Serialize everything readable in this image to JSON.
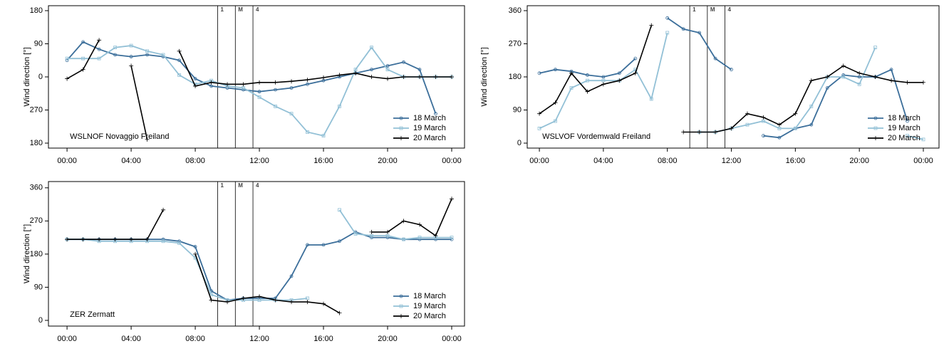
{
  "chart_data": [
    {
      "type": "line",
      "title": "WSLNOF Novaggio Freiland",
      "y_label": "Wind direction [°]",
      "legend": "bottom-right",
      "x": [
        0,
        1,
        2,
        3,
        4,
        5,
        6,
        7,
        8,
        9,
        10,
        11,
        12,
        13,
        14,
        15,
        16,
        17,
        18,
        19,
        20,
        21,
        22,
        23,
        24
      ],
      "xlim": [
        -1.16,
        24.8
      ],
      "xticks": [
        {
          "value": 0,
          "label": "00:00"
        },
        {
          "value": 4,
          "label": "04:00"
        },
        {
          "value": 8,
          "label": "08:00"
        },
        {
          "value": 12,
          "label": "12:00"
        },
        {
          "value": 16,
          "label": "16:00"
        },
        {
          "value": 20,
          "label": "20:00"
        },
        {
          "value": 24,
          "label": "00:00"
        }
      ],
      "ylim": [
        -193.5,
        193.5
      ],
      "yticks": [
        {
          "value": -180,
          "label": "180"
        },
        {
          "value": -90,
          "label": "270"
        },
        0,
        90,
        180
      ],
      "events": [
        {
          "x": 9.4,
          "label": "1"
        },
        {
          "x": 10.5,
          "label": "M"
        },
        {
          "x": 11.6,
          "label": "4"
        }
      ],
      "series": [
        {
          "name": "18 March",
          "color": "#3b6e9a",
          "marker": "circle",
          "values": [
            45,
            95,
            75,
            60,
            55,
            60,
            55,
            45,
            -5,
            -25,
            -30,
            -35,
            -40,
            -35,
            -30,
            -20,
            -10,
            0,
            10,
            20,
            30,
            40,
            20,
            -100,
            null
          ]
        },
        {
          "name": "19 March",
          "color": "#92c0d6",
          "marker": "square",
          "values": [
            50,
            50,
            50,
            80,
            85,
            70,
            60,
            5,
            -20,
            -10,
            -25,
            -30,
            -55,
            -80,
            -100,
            -150,
            -160,
            -80,
            20,
            80,
            20,
            0,
            0,
            0,
            0
          ]
        },
        {
          "name": "20 March",
          "color": "#000000",
          "marker": "plus",
          "values": [
            -5,
            20,
            100,
            null,
            30,
            -170,
            null,
            70,
            -25,
            -15,
            -20,
            -20,
            -15,
            -15,
            -12,
            -8,
            -2,
            5,
            10,
            0,
            -5,
            0,
            0,
            0,
            0
          ]
        }
      ]
    },
    {
      "type": "line",
      "title": "WSLVOF Vordemwald Freiland",
      "y_label": "Wind direction [°]",
      "legend": "bottom-right",
      "x": [
        0,
        1,
        2,
        3,
        4,
        5,
        6,
        7,
        8,
        9,
        10,
        11,
        12,
        13,
        14,
        15,
        16,
        17,
        18,
        19,
        20,
        21,
        22,
        23,
        24
      ],
      "xlim": [
        -0.76,
        24.98
      ],
      "xticks": [
        {
          "value": 0,
          "label": "00:00"
        },
        {
          "value": 4,
          "label": "04:00"
        },
        {
          "value": 8,
          "label": "08:00"
        },
        {
          "value": 12,
          "label": "12:00"
        },
        {
          "value": 16,
          "label": "16:00"
        },
        {
          "value": 20,
          "label": "20:00"
        },
        {
          "value": 24,
          "label": "00:00"
        }
      ],
      "ylim": [
        -13.5,
        373.5
      ],
      "yticks": [
        0,
        90,
        180,
        270,
        360
      ],
      "events": [
        {
          "x": 9.4,
          "label": "1"
        },
        {
          "x": 10.5,
          "label": "M"
        },
        {
          "x": 11.6,
          "label": "4"
        }
      ],
      "series": [
        {
          "name": "18 March",
          "color": "#3b6e9a",
          "marker": "circle",
          "values": [
            190,
            200,
            195,
            185,
            180,
            190,
            230,
            null,
            340,
            310,
            300,
            230,
            200,
            null,
            20,
            15,
            40,
            50,
            150,
            185,
            180,
            180,
            200,
            60,
            null
          ]
        },
        {
          "name": "19 March",
          "color": "#92c0d6",
          "marker": "square",
          "values": [
            40,
            60,
            150,
            170,
            170,
            170,
            200,
            120,
            300,
            null,
            30,
            30,
            40,
            50,
            60,
            40,
            40,
            100,
            180,
            180,
            160,
            260,
            null,
            20,
            10
          ]
        },
        {
          "name": "20 March",
          "color": "#000000",
          "marker": "plus",
          "values": [
            80,
            110,
            190,
            140,
            160,
            170,
            190,
            320,
            null,
            30,
            30,
            30,
            40,
            80,
            70,
            50,
            80,
            170,
            180,
            210,
            190,
            180,
            170,
            165,
            165
          ]
        }
      ]
    },
    {
      "type": "line",
      "title": "ZER Zermatt",
      "y_label": "Wind direction [°]",
      "legend": "bottom-right",
      "x": [
        0,
        1,
        2,
        3,
        4,
        5,
        6,
        7,
        8,
        9,
        10,
        11,
        12,
        13,
        14,
        15,
        16,
        17,
        18,
        19,
        20,
        21,
        22,
        23,
        24
      ],
      "xlim": [
        -1.16,
        24.8
      ],
      "xticks": [
        {
          "value": 0,
          "label": "00:00"
        },
        {
          "value": 4,
          "label": "04:00"
        },
        {
          "value": 8,
          "label": "08:00"
        },
        {
          "value": 12,
          "label": "12:00"
        },
        {
          "value": 16,
          "label": "16:00"
        },
        {
          "value": 20,
          "label": "20:00"
        },
        {
          "value": 24,
          "label": "00:00"
        }
      ],
      "ylim": [
        -15.5,
        377
      ],
      "yticks": [
        0,
        90,
        180,
        270,
        360
      ],
      "events": [
        {
          "x": 9.4,
          "label": "1"
        },
        {
          "x": 10.5,
          "label": "M"
        },
        {
          "x": 11.6,
          "label": "4"
        }
      ],
      "series": [
        {
          "name": "18 March",
          "color": "#3b6e9a",
          "marker": "circle",
          "values": [
            220,
            220,
            220,
            220,
            220,
            220,
            220,
            215,
            200,
            80,
            55,
            60,
            60,
            60,
            120,
            205,
            205,
            215,
            240,
            225,
            225,
            220,
            220,
            220,
            220
          ]
        },
        {
          "name": "19 March",
          "color": "#92c0d6",
          "marker": "square",
          "values": [
            220,
            220,
            215,
            215,
            215,
            215,
            215,
            210,
            170,
            70,
            55,
            55,
            55,
            55,
            55,
            60,
            null,
            300,
            235,
            230,
            230,
            220,
            225,
            225,
            225
          ]
        },
        {
          "name": "20 March",
          "color": "#000000",
          "marker": "plus",
          "values": [
            220,
            220,
            220,
            220,
            220,
            220,
            300,
            null,
            180,
            55,
            50,
            60,
            65,
            55,
            50,
            50,
            45,
            20,
            null,
            240,
            240,
            270,
            260,
            230,
            330
          ]
        }
      ]
    }
  ]
}
